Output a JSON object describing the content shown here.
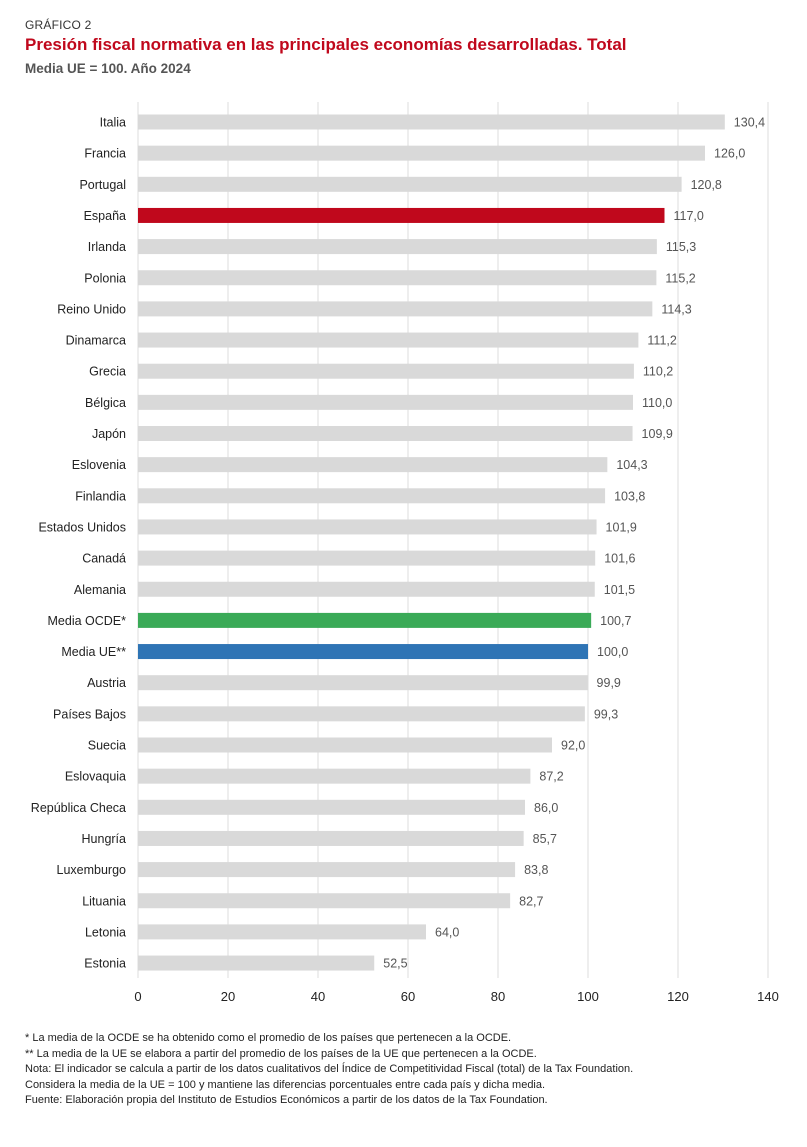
{
  "header": {
    "kicker": "GRÁFICO 2",
    "title": "Presión fiscal normativa en las principales economías desarrolladas. Total",
    "subtitle": "Media UE = 100. Año 2024"
  },
  "colors": {
    "default_bar": "#d9d9d9",
    "spain": "#c0081c",
    "oecd": "#3aaa57",
    "eu": "#2e74b5",
    "title": "#c0081c"
  },
  "chart_data": {
    "type": "bar",
    "orientation": "horizontal",
    "categories": [
      "Italia",
      "Francia",
      "Portugal",
      "España",
      "Irlanda",
      "Polonia",
      "Reino Unido",
      "Dinamarca",
      "Grecia",
      "Bélgica",
      "Japón",
      "Eslovenia",
      "Finlandia",
      "Estados Unidos",
      "Canadá",
      "Alemania",
      "Media OCDE*",
      "Media UE**",
      "Austria",
      "Países Bajos",
      "Suecia",
      "Eslovaquia",
      "República Checa",
      "Hungría",
      "Luxemburgo",
      "Lituania",
      "Letonia",
      "Estonia"
    ],
    "values": [
      130.4,
      126.0,
      120.8,
      117.0,
      115.3,
      115.2,
      114.3,
      111.2,
      110.2,
      110.0,
      109.9,
      104.3,
      103.8,
      101.9,
      101.6,
      101.5,
      100.7,
      100.0,
      99.9,
      99.3,
      92.0,
      87.2,
      86.0,
      85.7,
      83.8,
      82.7,
      64.0,
      52.5
    ],
    "value_labels": [
      "130,4",
      "126,0",
      "120,8",
      "117,0",
      "115,3",
      "115,2",
      "114,3",
      "111,2",
      "110,2",
      "110,0",
      "109,9",
      "104,3",
      "103,8",
      "101,9",
      "101,6",
      "101,5",
      "100,7",
      "100,0",
      "99,9",
      "99,3",
      "92,0",
      "87,2",
      "86,0",
      "85,7",
      "83,8",
      "82,7",
      "64,0",
      "52,5"
    ],
    "highlight": {
      "España": "spain",
      "Media OCDE*": "oecd",
      "Media UE**": "eu"
    },
    "xlim": [
      0,
      140
    ],
    "xticks": [
      0,
      20,
      40,
      60,
      80,
      100,
      120,
      140
    ],
    "xtick_labels": [
      "0",
      "20",
      "40",
      "60",
      "80",
      "100",
      "120",
      "140"
    ],
    "title": "Presión fiscal normativa en las principales economías desarrolladas. Total",
    "xlabel": "",
    "ylabel": "",
    "grid": true
  },
  "notes": [
    "* La media de la OCDE se ha obtenido como el promedio de los países que pertenecen a la OCDE.",
    "** La media de la UE se elabora a partir del promedio de los países de la UE que pertenecen a la OCDE.",
    "Nota: El indicador se calcula a partir de los datos cualitativos del Índice de Competitividad Fiscal (total) de la Tax Foundation.",
    "Considera la media de la UE = 100 y mantiene las diferencias porcentuales entre cada país y dicha media.",
    "Fuente: Elaboración propia del Instituto de Estudios Económicos a partir de los datos de la Tax Foundation."
  ]
}
